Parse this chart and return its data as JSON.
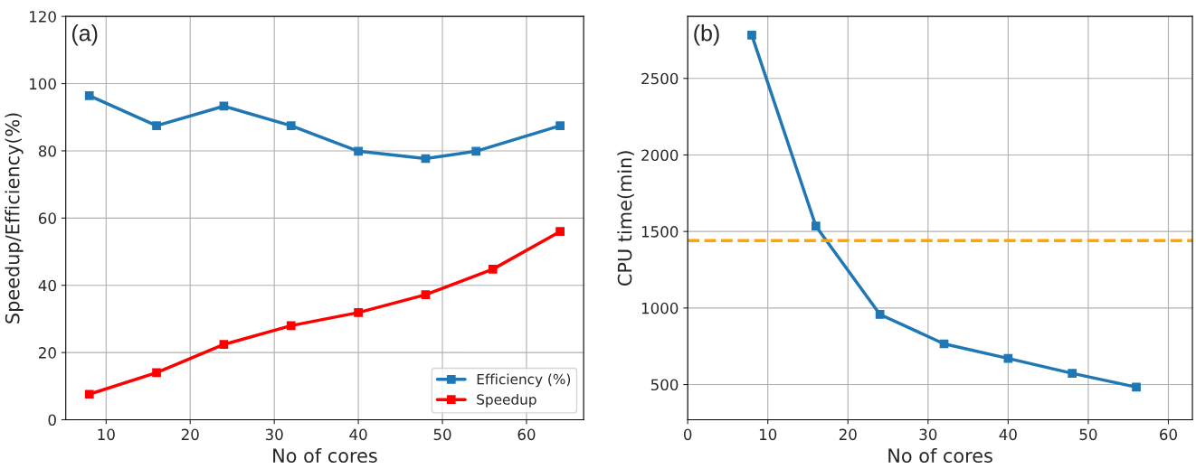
{
  "chart_data": [
    {
      "type": "line",
      "xlabel": "No of cores",
      "ylabel": "Speedup/Efficiency(%)",
      "annotations": [
        "(a)"
      ],
      "series": [
        {
          "name": "Efficiency (%)",
          "color": "#1f77b4",
          "x": [
            8,
            16,
            24,
            32,
            40,
            48,
            54,
            64
          ],
          "values": [
            96.4,
            87.5,
            93.3,
            87.5,
            79.9,
            77.7,
            79.9,
            87.5
          ]
        },
        {
          "name": "Speedup",
          "color": "#ff0000",
          "x": [
            8,
            16,
            24,
            32,
            40,
            48,
            56,
            64
          ],
          "values": [
            7.6,
            14.0,
            22.4,
            28.0,
            31.9,
            37.2,
            44.8,
            56.0
          ]
        }
      ],
      "xlim": [
        5.2,
        66.8
      ],
      "xticks": [
        10,
        20,
        30,
        40,
        50,
        60
      ],
      "ylim": [
        0,
        120
      ],
      "yticks": [
        0,
        20,
        40,
        60,
        80,
        100,
        120
      ],
      "grid": true,
      "legend": "bottom right",
      "marker": "square",
      "line_style": "solid"
    },
    {
      "type": "line",
      "xlabel": "No of cores",
      "ylabel": "CPU time(min)",
      "annotations": [
        "(b)"
      ],
      "series": [
        {
          "color": "#1f77b4",
          "x": [
            8,
            16,
            24,
            32,
            40,
            48,
            56
          ],
          "values": [
            2783,
            1535,
            958,
            766,
            671,
            573,
            483
          ]
        }
      ],
      "ref_lines": [
        {
          "axis": "y",
          "value": 1440,
          "color": "#ffa500",
          "line_style": "dashed"
        }
      ],
      "xlim": [
        0,
        63
      ],
      "xticks": [
        0,
        10,
        20,
        30,
        40,
        50,
        60
      ],
      "ylim": [
        270,
        2905
      ],
      "yticks": [
        500,
        1000,
        1500,
        2000,
        2500
      ],
      "grid": true,
      "marker": "square",
      "line_style": "solid"
    }
  ]
}
